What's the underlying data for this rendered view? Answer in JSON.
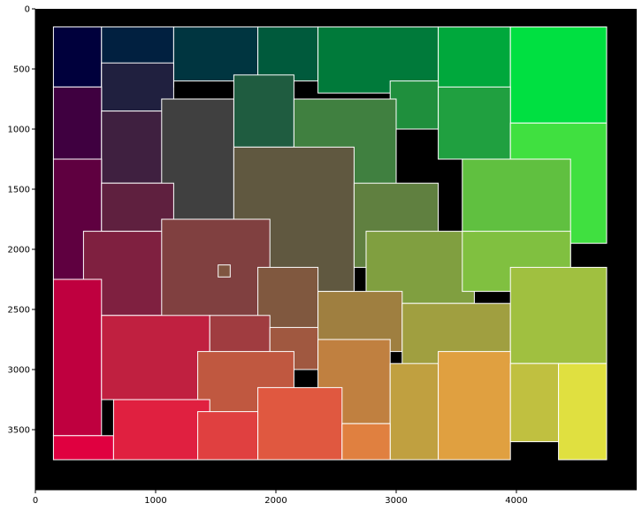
{
  "chart_data": {
    "type": "heatmap",
    "title": "",
    "xlabel": "",
    "ylabel": "",
    "xlim": [
      0,
      5000
    ],
    "ylim": [
      4000,
      0
    ],
    "x_ticks": [
      0,
      1000,
      2000,
      3000,
      4000
    ],
    "y_ticks": [
      0,
      500,
      1000,
      1500,
      2000,
      2500,
      3000,
      3500
    ],
    "x_tick_labels": [
      "0",
      "1000",
      "2000",
      "3000",
      "4000"
    ],
    "y_tick_labels": [
      "0",
      "500",
      "1000",
      "1500",
      "2000",
      "2500",
      "3000",
      "3500"
    ],
    "grid": false,
    "background_color": "#000000",
    "boundary_color": "#ffffff",
    "image_extent": {
      "x": [
        150,
        4750
      ],
      "y": [
        150,
        3750
      ]
    },
    "description_colors": "superpixel segmentation regions; red increases downward, green increases rightward",
    "regions": [
      {
        "x": [
          150,
          550
        ],
        "y": [
          150,
          650
        ],
        "color": "#00003c"
      },
      {
        "x": [
          550,
          1150
        ],
        "y": [
          150,
          650
        ],
        "color": "#012040"
      },
      {
        "x": [
          1150,
          1850
        ],
        "y": [
          150,
          600
        ],
        "color": "#003540"
      },
      {
        "x": [
          1850,
          2350
        ],
        "y": [
          150,
          600
        ],
        "color": "#005a3c"
      },
      {
        "x": [
          2350,
          3350
        ],
        "y": [
          150,
          700
        ],
        "color": "#007a3a"
      },
      {
        "x": [
          3350,
          3950
        ],
        "y": [
          150,
          700
        ],
        "color": "#00a83c"
      },
      {
        "x": [
          3950,
          4750
        ],
        "y": [
          150,
          950
        ],
        "color": "#00e041"
      },
      {
        "x": [
          550,
          1150
        ],
        "y": [
          450,
          850
        ],
        "color": "#20203f"
      },
      {
        "x": [
          150,
          550
        ],
        "y": [
          650,
          1250
        ],
        "color": "#3f0040"
      },
      {
        "x": [
          1650,
          2150
        ],
        "y": [
          550,
          1150
        ],
        "color": "#1f5c40"
      },
      {
        "x": [
          2950,
          3350
        ],
        "y": [
          600,
          1000
        ],
        "color": "#1f8f3d"
      },
      {
        "x": [
          3350,
          3950
        ],
        "y": [
          650,
          1250
        ],
        "color": "#20a040"
      },
      {
        "x": [
          550,
          1150
        ],
        "y": [
          850,
          1450
        ],
        "color": "#3f2040"
      },
      {
        "x": [
          1050,
          1650
        ],
        "y": [
          750,
          1750
        ],
        "color": "#404040"
      },
      {
        "x": [
          2150,
          3000
        ],
        "y": [
          750,
          1550
        ],
        "color": "#408040"
      },
      {
        "x": [
          3950,
          4750
        ],
        "y": [
          950,
          1950
        ],
        "color": "#40e040"
      },
      {
        "x": [
          150,
          550
        ],
        "y": [
          1250,
          2250
        ],
        "color": "#5f0040"
      },
      {
        "x": [
          550,
          1150
        ],
        "y": [
          1450,
          1850
        ],
        "color": "#5f203f"
      },
      {
        "x": [
          1650,
          2650
        ],
        "y": [
          1150,
          2350
        ],
        "color": "#605840"
      },
      {
        "x": [
          2650,
          3350
        ],
        "y": [
          1450,
          2150
        ],
        "color": "#608040"
      },
      {
        "x": [
          3550,
          4450
        ],
        "y": [
          1250,
          2150
        ],
        "color": "#60c040"
      },
      {
        "x": [
          400,
          1350
        ],
        "y": [
          1850,
          2550
        ],
        "color": "#7f2040"
      },
      {
        "x": [
          1050,
          1950
        ],
        "y": [
          1750,
          2650
        ],
        "color": "#804040"
      },
      {
        "x": [
          2750,
          3650
        ],
        "y": [
          1850,
          2450
        ],
        "color": "#809f40"
      },
      {
        "x": [
          3550,
          4450
        ],
        "y": [
          1850,
          2350
        ],
        "color": "#80c040"
      },
      {
        "x": [
          1850,
          2350
        ],
        "y": [
          2150,
          2850
        ],
        "color": "#80583f"
      },
      {
        "x": [
          150,
          550
        ],
        "y": [
          2250,
          3550
        ],
        "color": "#bf003f"
      },
      {
        "x": [
          550,
          1450
        ],
        "y": [
          2550,
          3250
        ],
        "color": "#c02040"
      },
      {
        "x": [
          1450,
          1950
        ],
        "y": [
          2550,
          2950
        ],
        "color": "#a03c40"
      },
      {
        "x": [
          2350,
          3050
        ],
        "y": [
          2350,
          2850
        ],
        "color": "#9f7f40"
      },
      {
        "x": [
          3050,
          3950
        ],
        "y": [
          2450,
          3150
        ],
        "color": "#a09f40"
      },
      {
        "x": [
          3950,
          4750
        ],
        "y": [
          2150,
          2950
        ],
        "color": "#a0c040"
      },
      {
        "x": [
          1950,
          2350
        ],
        "y": [
          2650,
          3000
        ],
        "color": "#a05840"
      },
      {
        "x": [
          1350,
          2150
        ],
        "y": [
          2850,
          3450
        ],
        "color": "#c05840"
      },
      {
        "x": [
          2350,
          2950
        ],
        "y": [
          2750,
          3450
        ],
        "color": "#c08040"
      },
      {
        "x": [
          2950,
          3350
        ],
        "y": [
          2950,
          3750
        ],
        "color": "#c0a040"
      },
      {
        "x": [
          3350,
          3950
        ],
        "y": [
          2850,
          3750
        ],
        "color": "#e0a040"
      },
      {
        "x": [
          3950,
          4350
        ],
        "y": [
          2950,
          3600
        ],
        "color": "#c0c040"
      },
      {
        "x": [
          4350,
          4750
        ],
        "y": [
          2950,
          3750
        ],
        "color": "#e0e040"
      },
      {
        "x": [
          150,
          650
        ],
        "y": [
          3550,
          3750
        ],
        "color": "#e00040"
      },
      {
        "x": [
          650,
          1450
        ],
        "y": [
          3250,
          3750
        ],
        "color": "#e02040"
      },
      {
        "x": [
          1350,
          1850
        ],
        "y": [
          3350,
          3750
        ],
        "color": "#e04040"
      },
      {
        "x": [
          1850,
          2550
        ],
        "y": [
          3150,
          3750
        ],
        "color": "#e05840"
      },
      {
        "x": [
          2550,
          2950
        ],
        "y": [
          3450,
          3750
        ],
        "color": "#e08040"
      },
      {
        "x": [
          1520,
          1620
        ],
        "y": [
          2130,
          2230
        ],
        "color": "#7f5540"
      }
    ]
  }
}
